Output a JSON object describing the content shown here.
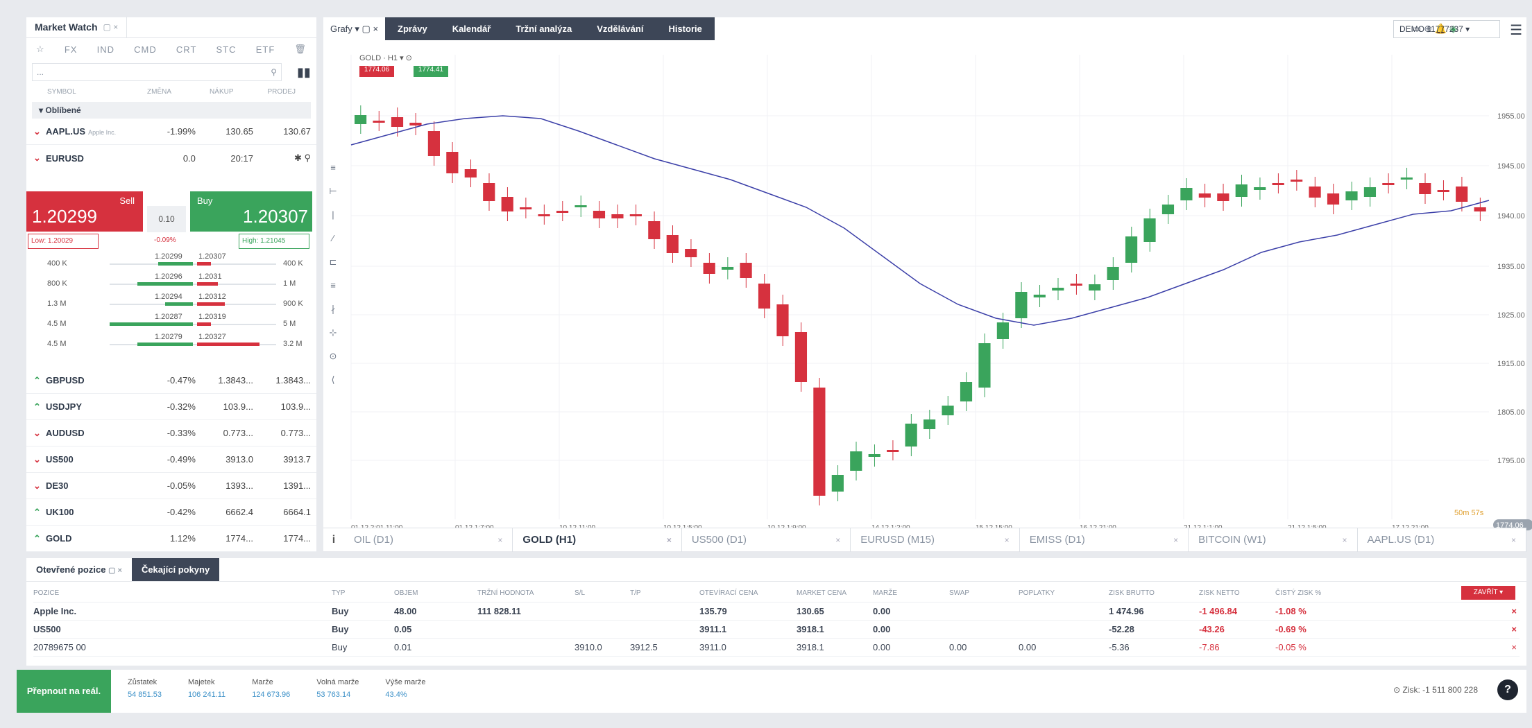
{
  "market_watch": {
    "title": "Market Watch",
    "categories": [
      "☆",
      "FX",
      "IND",
      "CMD",
      "CRT",
      "STC",
      "ETF"
    ],
    "search_value": "...",
    "columns": [
      "SYMBOL",
      "ZMĚNA",
      "NÁKUP",
      "PRODEJ"
    ],
    "group": "Oblíbené",
    "top_row": {
      "name": "AAPL.US",
      "sub": "Apple Inc.",
      "chg": "-1.99%",
      "bid": "130.65",
      "ask": "130.67"
    },
    "expanded": {
      "name": "EURUSD",
      "spread": "0.0",
      "time": "20:17",
      "sell_label": "Sell",
      "buy_label": "Buy",
      "sell_price": "1.20299",
      "buy_price": "1.20307",
      "lot": "0.10",
      "low": "Low: 1.20029",
      "high": "High: 1.21045",
      "pct": "-0.09%"
    },
    "depth": [
      {
        "l": "400 K",
        "b": "1.20299",
        "a": "1.20307",
        "r": "400 K"
      },
      {
        "l": "800 K",
        "b": "1.20296",
        "a": "1.2031",
        "r": "1 M"
      },
      {
        "l": "1.3 M",
        "b": "1.20294",
        "a": "1.20312",
        "r": "900 K"
      },
      {
        "l": "4.5 M",
        "b": "1.20287",
        "a": "1.20319",
        "r": "5 M"
      },
      {
        "l": "4.5 M",
        "b": "1.20279",
        "a": "1.20327",
        "r": "3.2 M"
      }
    ],
    "rows": [
      {
        "dir": "up",
        "name": "GBPUSD",
        "chg": "-0.47%",
        "bid": "1.3843...",
        "ask": "1.3843..."
      },
      {
        "dir": "up",
        "name": "USDJPY",
        "chg": "-0.32%",
        "bid": "103.9...",
        "ask": "103.9..."
      },
      {
        "dir": "down",
        "name": "AUDUSD",
        "chg": "-0.33%",
        "bid": "0.773...",
        "ask": "0.773..."
      },
      {
        "dir": "down",
        "name": "US500",
        "chg": "-0.49%",
        "bid": "3913.0",
        "ask": "3913.7"
      },
      {
        "dir": "down",
        "name": "DE30",
        "chg": "-0.05%",
        "bid": "1393...",
        "ask": "1391..."
      },
      {
        "dir": "up",
        "name": "UK100",
        "chg": "-0.42%",
        "bid": "6662.4",
        "ask": "6664.1"
      },
      {
        "dir": "up",
        "name": "GOLD",
        "chg": "1.12%",
        "bid": "1774...",
        "ask": "1774..."
      }
    ]
  },
  "chart": {
    "tabs": [
      "Grafy",
      "Zprávy",
      "Kalendář",
      "Tržní analýza",
      "Vzdělávání",
      "Historie"
    ],
    "account": "DEMO  11777237",
    "instrument": "GOLD",
    "timeframe": "H1",
    "sell": "1774.06",
    "buy": "1774.41",
    "y_ticks": [
      "1955.00",
      "1945.00",
      "1940.00",
      "1935.00",
      "1925.00",
      "1915.00",
      "1805.00",
      "1795.00"
    ],
    "x_ticks": [
      "01.12 2:01 11:00",
      "01.12 1:7:00",
      "10.12 11:00",
      "10.12 1:5:00",
      "10.12 1:9:00",
      "14.12 1:2:00",
      "15.12 15:00",
      "16.12 21:00",
      "21.12 1:1:00",
      "21.12 1:5:00",
      "17.12 21:00"
    ],
    "price_label": "1774.06",
    "price_small": "50m 57s",
    "bottom_tabs": [
      "OIL (D1)",
      "GOLD (H1)",
      "US500 (D1)",
      "EURUSD (M15)",
      "EMISS (D1)",
      "BITCOIN (W1)",
      "AAPL.US (D1)"
    ]
  },
  "positions": {
    "tabs": [
      "Otevřené pozice",
      "Čekající pokyny"
    ],
    "columns": [
      "POZICE",
      "TYP",
      "OBJEM",
      "TRŽNÍ HODNOTA",
      "S/L",
      "T/P",
      "OTEVÍRACÍ CENA",
      "MARKET CENA",
      "MARŽE",
      "SWAP",
      "POPLATKY",
      "ZISK BRUTTO",
      "ZISK NETTO",
      "ČISTÝ ZISK %"
    ],
    "rows": [
      {
        "name": "Apple Inc.",
        "type": "Buy",
        "vol": "48.00",
        "mv": "111 828.11",
        "sl": "",
        "tp": "",
        "open": "135.79",
        "market": "130.65",
        "margin": "0.00",
        "swap": "",
        "fee": "",
        "gross": "1 474.96",
        "net": "-1 496.84",
        "pct": "-1.08 %"
      },
      {
        "name": "US500",
        "type": "Buy",
        "vol": "0.05",
        "mv": "",
        "sl": "",
        "tp": "",
        "open": "3911.1",
        "market": "3918.1",
        "margin": "0.00",
        "swap": "",
        "fee": "",
        "gross": "-52.28",
        "net": "-43.26",
        "pct": "-0.69 %"
      },
      {
        "name": "20789675 00",
        "type": "Buy",
        "vol": "0.01",
        "mv": "",
        "sl": "3910.0",
        "tp": "3912.5",
        "open": "3911.0",
        "market": "3918.1",
        "margin": "0.00",
        "swap": "0.00",
        "fee": "0.00",
        "gross": "-5.36",
        "net": "-7.86",
        "pct": "-0.05 %"
      }
    ],
    "close_btn": "ZAVŘÍT"
  },
  "footer": {
    "switch": "Přepnout na reál.",
    "stats": [
      {
        "l": "Zůstatek",
        "v": "54 851.53"
      },
      {
        "l": "Majetek",
        "v": "106 241.11"
      },
      {
        "l": "Marže",
        "v": "124 673.96"
      },
      {
        "l": "Volná marže",
        "v": "53 763.14"
      },
      {
        "l": "Výše marže",
        "v": "43.4%"
      }
    ],
    "profit": "Zisk: -1 511 800 228"
  }
}
